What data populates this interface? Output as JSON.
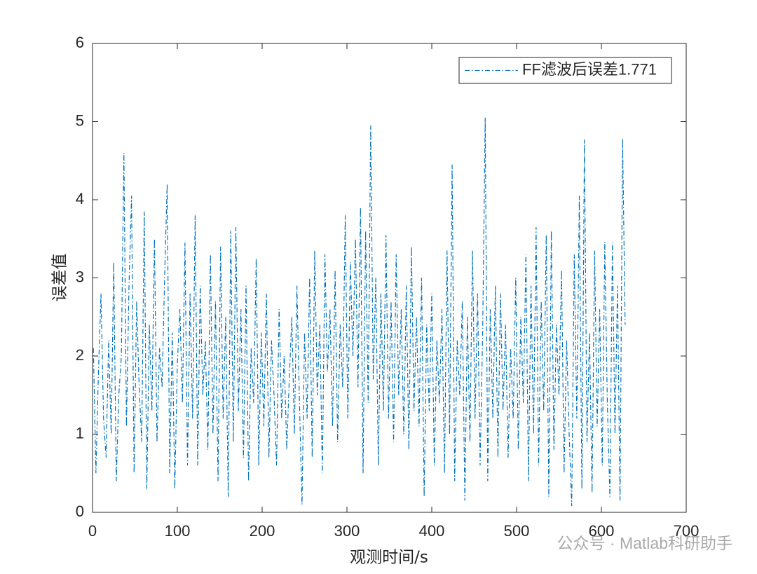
{
  "chart_data": {
    "type": "line",
    "xlabel": "观测时间/s",
    "ylabel": "误差值",
    "watermark": "公众号 · Matlab科研助手",
    "x": [
      1,
      4,
      7,
      10,
      13,
      16,
      19,
      22,
      25,
      28,
      31,
      34,
      37,
      40,
      43,
      46,
      49,
      52,
      55,
      58,
      61,
      64,
      67,
      70,
      73,
      76,
      79,
      82,
      85,
      88,
      91,
      94,
      97,
      100,
      103,
      106,
      109,
      112,
      115,
      118,
      121,
      124,
      127,
      130,
      133,
      136,
      139,
      142,
      145,
      148,
      151,
      154,
      157,
      160,
      163,
      166,
      169,
      172,
      175,
      178,
      181,
      184,
      187,
      190,
      193,
      196,
      199,
      202,
      205,
      208,
      211,
      214,
      217,
      220,
      223,
      226,
      229,
      232,
      235,
      238,
      241,
      244,
      247,
      250,
      253,
      256,
      259,
      262,
      265,
      268,
      271,
      274,
      277,
      280,
      283,
      286,
      289,
      292,
      295,
      298,
      301,
      304,
      307,
      310,
      313,
      316,
      319,
      322,
      325,
      328,
      331,
      334,
      337,
      340,
      343,
      346,
      349,
      352,
      355,
      358,
      361,
      364,
      367,
      370,
      373,
      376,
      379,
      382,
      385,
      388,
      391,
      394,
      397,
      400,
      403,
      406,
      409,
      412,
      415,
      418,
      421,
      424,
      427,
      430,
      433,
      436,
      439,
      442,
      445,
      448,
      451,
      454,
      457,
      460,
      463,
      466,
      469,
      472,
      475,
      478,
      481,
      484,
      487,
      490,
      493,
      496,
      499,
      502,
      505,
      508,
      511,
      514,
      517,
      520,
      523,
      526,
      529,
      532,
      535,
      538,
      541,
      544,
      547,
      550,
      553,
      556,
      559,
      562,
      565,
      568,
      571,
      574,
      577,
      580,
      583,
      586,
      589,
      592,
      595,
      598,
      601,
      604,
      607,
      610,
      613,
      616,
      619,
      622,
      625,
      628
    ],
    "series": [
      {
        "name": "FF滤波后误差1.771",
        "color": "#0072BD",
        "values": [
          2.1,
          0.5,
          1.8,
          2.8,
          1.2,
          0.7,
          2.2,
          1.0,
          3.2,
          0.4,
          1.5,
          2.0,
          4.6,
          1.1,
          2.9,
          4.05,
          0.5,
          2.7,
          1.6,
          0.9,
          3.85,
          0.3,
          2.4,
          1.3,
          3.5,
          0.9,
          2.1,
          1.6,
          3.0,
          4.2,
          0.5,
          2.3,
          0.3,
          1.9,
          2.6,
          1.4,
          3.45,
          0.6,
          2.8,
          1.2,
          3.8,
          0.6,
          2.9,
          1.5,
          2.2,
          0.8,
          3.3,
          1.0,
          2.7,
          0.4,
          3.4,
          1.2,
          2.5,
          0.2,
          3.6,
          0.9,
          3.65,
          1.3,
          2.6,
          0.7,
          2.9,
          0.4,
          2.1,
          1.4,
          3.25,
          0.6,
          2.3,
          1.1,
          2.8,
          0.7,
          2.2,
          1.5,
          0.6,
          2.6,
          1.2,
          2.0,
          0.8,
          1.7,
          2.5,
          1.0,
          2.9,
          1.4,
          0.1,
          2.3,
          1.2,
          3.0,
          0.7,
          3.35,
          1.5,
          2.4,
          0.5,
          3.3,
          1.8,
          2.6,
          1.1,
          3.1,
          0.9,
          2.4,
          1.6,
          3.8,
          1.2,
          3.2,
          2.0,
          3.5,
          1.6,
          3.9,
          0.5,
          3.6,
          1.4,
          4.95,
          1.7,
          3.0,
          0.6,
          2.8,
          1.3,
          3.55,
          1.2,
          2.7,
          0.9,
          3.3,
          1.5,
          2.6,
          1.0,
          2.9,
          0.8,
          3.4,
          1.3,
          2.5,
          1.1,
          3.0,
          0.2,
          2.4,
          1.3,
          2.8,
          0.6,
          2.2,
          1.4,
          2.6,
          0.5,
          3.35,
          1.0,
          4.45,
          0.4,
          2.2,
          1.5,
          2.7,
          0.15,
          2.5,
          0.9,
          3.35,
          1.2,
          2.8,
          0.6,
          2.3,
          5.05,
          0.4,
          2.6,
          1.2,
          2.9,
          0.7,
          2.8,
          1.3,
          2.4,
          0.7,
          2.1,
          1.2,
          3.0,
          0.8,
          2.5,
          1.4,
          3.3,
          0.4,
          2.9,
          1.0,
          3.65,
          0.6,
          2.7,
          1.3,
          3.55,
          0.2,
          3.6,
          0.8,
          2.4,
          1.5,
          3.1,
          0.5,
          2.2,
          1.0,
          0.08,
          3.3,
          1.2,
          4.05,
          0.3,
          4.77,
          0.9,
          2.3,
          0.25,
          3.35,
          1.1,
          2.6,
          0.6,
          3.46,
          1.4,
          0.2,
          3.45,
          1.0,
          2.9,
          0.15,
          4.78,
          2.4
        ]
      }
    ],
    "xlim": [
      0,
      700
    ],
    "xticks": [
      0,
      100,
      200,
      300,
      400,
      500,
      600,
      700
    ],
    "ylim": [
      0,
      6
    ],
    "yticks": [
      0,
      1,
      2,
      3,
      4,
      5,
      6
    ],
    "legend": "upper right",
    "grid": false
  }
}
